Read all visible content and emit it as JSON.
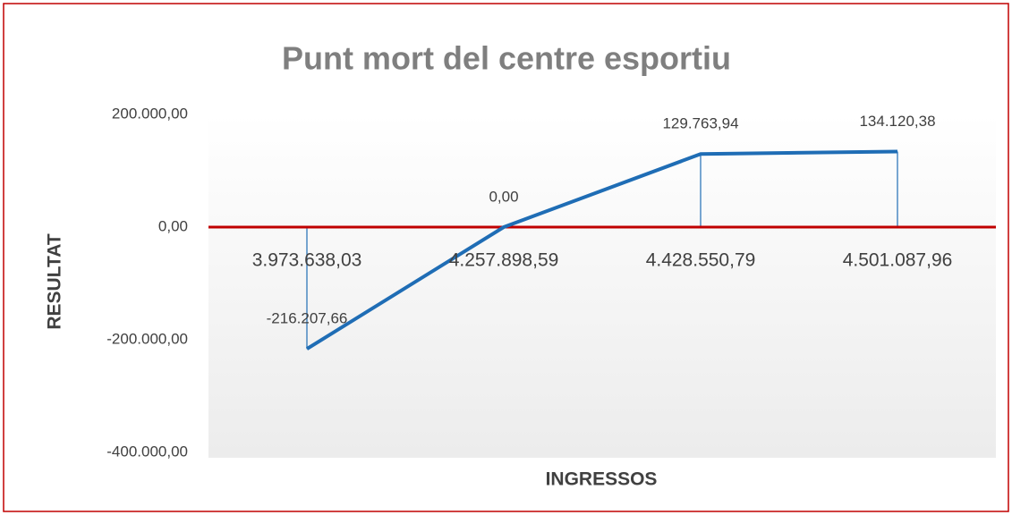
{
  "chart_data": {
    "type": "line",
    "title": "Punt mort del centre esportiu",
    "x_label": "INGRESSOS",
    "y_label": "RESULTAT",
    "categories": [
      "3.973.638,03",
      "4.257.898,59",
      "4.428.550,79",
      "4.501.087,96"
    ],
    "series": [
      {
        "color": "#1f6db5",
        "values": [
          -216207.66,
          0,
          129763.94,
          134120.38
        ],
        "value_labels": [
          "-216.207,66",
          "0,00",
          "129.763,94",
          "134.120,38"
        ]
      }
    ],
    "ylim": [
      -400000,
      200000
    ],
    "yticks": [
      {
        "value": -400000,
        "label": "-400.000,00"
      },
      {
        "value": -200000,
        "label": "-200.000,00"
      },
      {
        "value": 0,
        "label": "0,00"
      },
      {
        "value": 200000,
        "label": "200.000,00"
      }
    ],
    "zero_line_color": "#c00000",
    "drop_lines": true,
    "grid": false
  }
}
